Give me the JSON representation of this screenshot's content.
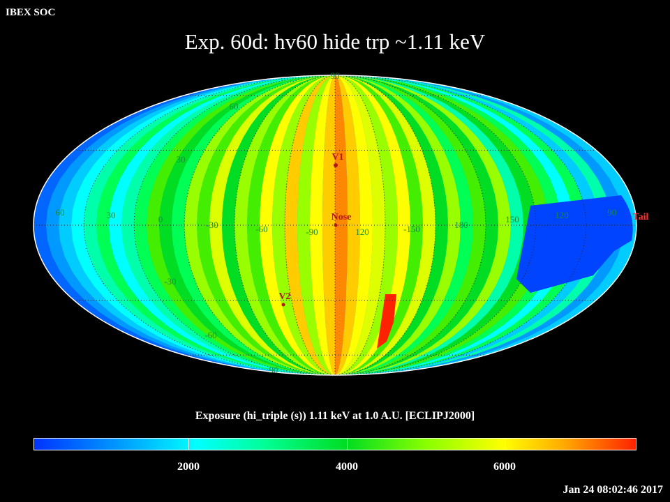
{
  "header": {
    "source_label": "IBEX SOC",
    "title": "Exp.   60d: hv60 hide trp ~1.11 keV"
  },
  "map": {
    "lat_labels": {
      "p90": "90",
      "p60": "60",
      "p30": "30",
      "m30": "-30",
      "m60": "-60",
      "m90": "90"
    },
    "lon_labels": [
      "60",
      "30",
      "0",
      "-30",
      "-60",
      "-90",
      "120",
      "-150",
      "180",
      "150",
      "120",
      "90"
    ],
    "markers": {
      "v1": "V1",
      "nose": "Nose",
      "v2": "V2",
      "tail": "Tail"
    },
    "marker_color": "#ff3030"
  },
  "colorbar": {
    "caption": "Exposure (hi_triple (s))  1.11 keV at 1.0 A.U. [ECLIPJ2000]",
    "ticks": [
      "2000",
      "4000",
      "6000"
    ]
  },
  "footer": {
    "timestamp": "Jan 24 08:02:46 2017"
  }
}
